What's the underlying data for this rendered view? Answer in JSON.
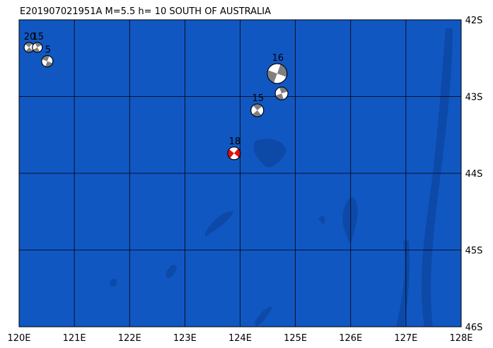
{
  "map": {
    "title": "E201907021951A M=5.5 h= 10 SOUTH OF AUSTRALIA",
    "xlim": [
      120,
      128
    ],
    "ylim": [
      -46,
      -42
    ],
    "xticks": [
      {
        "value": 120,
        "label": "120E"
      },
      {
        "value": 121,
        "label": "121E"
      },
      {
        "value": 122,
        "label": "122E"
      },
      {
        "value": 123,
        "label": "123E"
      },
      {
        "value": 124,
        "label": "124E"
      },
      {
        "value": 125,
        "label": "125E"
      },
      {
        "value": 126,
        "label": "126E"
      },
      {
        "value": 127,
        "label": "127E"
      },
      {
        "value": 128,
        "label": "128E"
      }
    ],
    "yticks": [
      {
        "value": -42,
        "label": "42S"
      },
      {
        "value": -43,
        "label": "43S"
      },
      {
        "value": -44,
        "label": "44S"
      },
      {
        "value": -45,
        "label": "45S"
      },
      {
        "value": -46,
        "label": "46S"
      }
    ],
    "events": [
      {
        "lon": 120.18,
        "lat": -42.36,
        "depth": 20,
        "color": "#808080"
      },
      {
        "lon": 120.33,
        "lat": -42.36,
        "depth": 15,
        "color": "#808080"
      },
      {
        "lon": 120.51,
        "lat": -42.54,
        "depth": 5,
        "color": "#808080"
      },
      {
        "lon": 124.67,
        "lat": -42.7,
        "depth": 16,
        "color": "#808080"
      },
      {
        "lon": 124.75,
        "lat": -42.96,
        "depth": null,
        "color": "#808080"
      },
      {
        "lon": 124.31,
        "lat": -43.18,
        "depth": 15,
        "color": "#808080"
      },
      {
        "lon": 123.89,
        "lat": -43.74,
        "depth": 18,
        "color": "#e01010"
      }
    ]
  }
}
